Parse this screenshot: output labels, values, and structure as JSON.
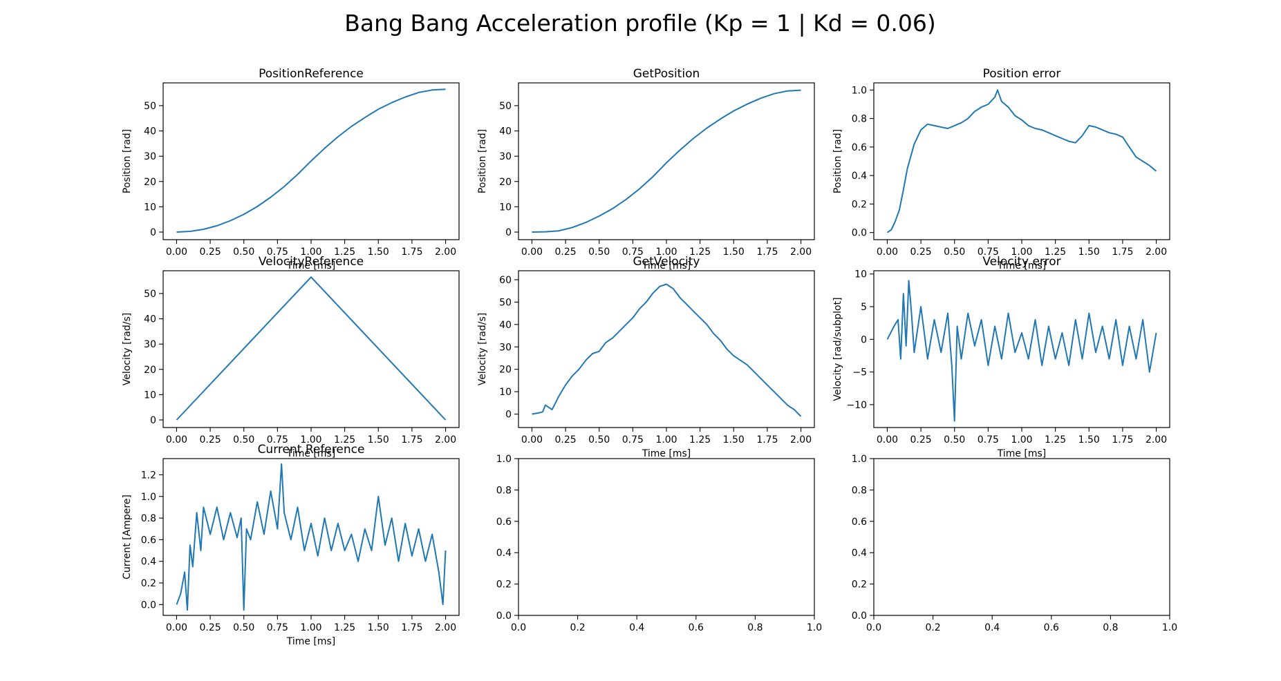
{
  "figure_title": "Bang Bang Acceleration profile (Kp = 1 | Kd = 0.06)",
  "series_color": "#1f77b4",
  "chart_data": [
    {
      "type": "line",
      "title": "PositionReference",
      "xlabel": "Time [ms]",
      "ylabel": "Position [rad]",
      "xlim": [
        -0.1,
        2.1
      ],
      "ylim": [
        -3,
        59
      ],
      "xticks": [
        "0.00",
        "0.25",
        "0.50",
        "0.75",
        "1.00",
        "1.25",
        "1.50",
        "1.75",
        "2.00"
      ],
      "yticks": [
        "0",
        "10",
        "20",
        "30",
        "40",
        "50"
      ],
      "x": [
        0,
        0.1,
        0.2,
        0.3,
        0.4,
        0.5,
        0.6,
        0.7,
        0.8,
        0.9,
        1.0,
        1.1,
        1.2,
        1.3,
        1.4,
        1.5,
        1.6,
        1.7,
        1.8,
        1.9,
        2.0
      ],
      "y": [
        0,
        0.28,
        1.1,
        2.5,
        4.5,
        7.0,
        10.1,
        13.8,
        18.0,
        22.8,
        28.1,
        33.1,
        37.7,
        41.8,
        45.3,
        48.6,
        51.2,
        53.4,
        55.2,
        56.2,
        56.5
      ]
    },
    {
      "type": "line",
      "title": "GetPosition",
      "xlabel": "Time [ms]",
      "ylabel": "Position [rad]",
      "xlim": [
        -0.1,
        2.1
      ],
      "ylim": [
        -3,
        59
      ],
      "xticks": [
        "0.00",
        "0.25",
        "0.50",
        "0.75",
        "1.00",
        "1.25",
        "1.50",
        "1.75",
        "2.00"
      ],
      "yticks": [
        "0",
        "10",
        "20",
        "30",
        "40",
        "50"
      ],
      "x": [
        0,
        0.1,
        0.2,
        0.3,
        0.4,
        0.5,
        0.6,
        0.7,
        0.8,
        0.9,
        1.0,
        1.1,
        1.2,
        1.3,
        1.4,
        1.5,
        1.6,
        1.7,
        1.8,
        1.9,
        2.0
      ],
      "y": [
        0,
        0.1,
        0.5,
        1.8,
        3.8,
        6.3,
        9.3,
        12.9,
        17.1,
        21.9,
        27.4,
        32.4,
        37.0,
        41.1,
        44.7,
        47.9,
        50.6,
        52.9,
        54.7,
        55.8,
        56.1
      ]
    },
    {
      "type": "line",
      "title": "Position error",
      "xlabel": "Time [ms]",
      "ylabel": "Position [rad]",
      "xlim": [
        -0.1,
        2.1
      ],
      "ylim": [
        -0.05,
        1.05
      ],
      "xticks": [
        "0.00",
        "0.25",
        "0.50",
        "0.75",
        "1.00",
        "1.25",
        "1.50",
        "1.75",
        "2.00"
      ],
      "yticks": [
        "0.0",
        "0.2",
        "0.4",
        "0.6",
        "0.8",
        "1.0"
      ],
      "x": [
        0,
        0.03,
        0.06,
        0.09,
        0.12,
        0.15,
        0.2,
        0.25,
        0.3,
        0.35,
        0.4,
        0.45,
        0.5,
        0.55,
        0.6,
        0.65,
        0.7,
        0.75,
        0.8,
        0.82,
        0.85,
        0.9,
        0.95,
        1.0,
        1.05,
        1.1,
        1.15,
        1.2,
        1.25,
        1.3,
        1.35,
        1.4,
        1.45,
        1.5,
        1.55,
        1.6,
        1.65,
        1.7,
        1.75,
        1.8,
        1.85,
        1.9,
        1.95,
        2.0
      ],
      "y": [
        0,
        0.02,
        0.08,
        0.16,
        0.3,
        0.45,
        0.62,
        0.72,
        0.76,
        0.75,
        0.74,
        0.73,
        0.75,
        0.77,
        0.8,
        0.85,
        0.88,
        0.9,
        0.95,
        1.0,
        0.92,
        0.88,
        0.82,
        0.79,
        0.75,
        0.73,
        0.72,
        0.7,
        0.68,
        0.66,
        0.64,
        0.63,
        0.68,
        0.75,
        0.74,
        0.72,
        0.7,
        0.69,
        0.67,
        0.6,
        0.53,
        0.5,
        0.47,
        0.43
      ]
    },
    {
      "type": "line",
      "title": "VelocityReference",
      "xlabel": "Time [ms]",
      "ylabel": "Velocity [rad/s]",
      "xlim": [
        -0.1,
        2.1
      ],
      "ylim": [
        -3,
        59
      ],
      "xticks": [
        "0.00",
        "0.25",
        "0.50",
        "0.75",
        "1.00",
        "1.25",
        "1.50",
        "1.75",
        "2.00"
      ],
      "yticks": [
        "0",
        "10",
        "20",
        "30",
        "40",
        "50"
      ],
      "x": [
        0,
        1.0,
        2.0
      ],
      "y": [
        0,
        56.5,
        0
      ]
    },
    {
      "type": "line",
      "title": "GetVelocity",
      "xlabel": "Time [ms]",
      "ylabel": "Velocity [rad/s]",
      "xlim": [
        -0.1,
        2.1
      ],
      "ylim": [
        -6,
        64
      ],
      "xticks": [
        "0.00",
        "0.25",
        "0.50",
        "0.75",
        "1.00",
        "1.25",
        "1.50",
        "1.75",
        "2.00"
      ],
      "yticks": [
        "0",
        "10",
        "20",
        "30",
        "40",
        "50",
        "60"
      ],
      "x": [
        0,
        0.05,
        0.08,
        0.1,
        0.15,
        0.2,
        0.25,
        0.3,
        0.35,
        0.4,
        0.45,
        0.5,
        0.55,
        0.6,
        0.65,
        0.7,
        0.75,
        0.8,
        0.85,
        0.9,
        0.95,
        1.0,
        1.05,
        1.1,
        1.15,
        1.2,
        1.25,
        1.3,
        1.35,
        1.4,
        1.45,
        1.5,
        1.55,
        1.6,
        1.65,
        1.7,
        1.75,
        1.8,
        1.85,
        1.9,
        1.95,
        2.0
      ],
      "y": [
        0,
        0.5,
        1,
        4,
        2,
        8,
        13,
        17,
        20,
        24,
        27,
        28,
        32,
        34,
        37,
        40,
        43,
        47,
        50,
        54,
        57,
        58,
        56,
        52,
        49,
        46,
        43,
        40,
        36,
        33,
        29,
        26,
        24,
        22,
        19,
        16,
        13,
        10,
        7,
        4,
        2,
        -1
      ]
    },
    {
      "type": "line",
      "title": "Velocity error",
      "xlabel": "Time [ms]",
      "ylabel": "Velocity [rad/subplot]",
      "xlim": [
        -0.1,
        2.1
      ],
      "ylim": [
        -13.5,
        10.5
      ],
      "xticks": [
        "0.00",
        "0.25",
        "0.50",
        "0.75",
        "1.00",
        "1.25",
        "1.50",
        "1.75",
        "2.00"
      ],
      "yticks": [
        "−10",
        "−5",
        "0",
        "5",
        "10"
      ],
      "x": [
        0,
        0.05,
        0.08,
        0.1,
        0.12,
        0.14,
        0.16,
        0.18,
        0.2,
        0.25,
        0.3,
        0.35,
        0.4,
        0.45,
        0.48,
        0.5,
        0.52,
        0.55,
        0.6,
        0.65,
        0.7,
        0.75,
        0.8,
        0.85,
        0.9,
        0.95,
        1.0,
        1.05,
        1.1,
        1.15,
        1.2,
        1.25,
        1.3,
        1.35,
        1.4,
        1.45,
        1.5,
        1.55,
        1.6,
        1.65,
        1.7,
        1.75,
        1.8,
        1.85,
        1.9,
        1.95,
        2.0
      ],
      "y": [
        0,
        2,
        3,
        -3,
        7,
        -1,
        9,
        4,
        -2,
        5,
        -3,
        3,
        -2,
        4,
        -4,
        -12.5,
        2,
        -3,
        4,
        -1,
        3,
        -4,
        2,
        -3,
        4,
        -2,
        1,
        -3,
        3,
        -4,
        2,
        -3,
        1,
        -4,
        3,
        -3,
        4,
        -2,
        2,
        -3,
        3,
        -4,
        2,
        -3,
        3,
        -5,
        1
      ]
    },
    {
      "type": "line",
      "title": "Current Reference",
      "xlabel": "Time [ms]",
      "ylabel": "Current [Ampere]",
      "xlim": [
        -0.1,
        2.1
      ],
      "ylim": [
        -0.1,
        1.35
      ],
      "xticks": [
        "0.00",
        "0.25",
        "0.50",
        "0.75",
        "1.00",
        "1.25",
        "1.50",
        "1.75",
        "2.00"
      ],
      "yticks": [
        "0.0",
        "0.2",
        "0.4",
        "0.6",
        "0.8",
        "1.0",
        "1.2"
      ],
      "x": [
        0,
        0.03,
        0.06,
        0.08,
        0.1,
        0.12,
        0.15,
        0.18,
        0.2,
        0.25,
        0.3,
        0.35,
        0.4,
        0.45,
        0.48,
        0.5,
        0.52,
        0.55,
        0.6,
        0.65,
        0.7,
        0.75,
        0.78,
        0.8,
        0.85,
        0.9,
        0.95,
        1.0,
        1.05,
        1.1,
        1.15,
        1.2,
        1.25,
        1.3,
        1.35,
        1.4,
        1.45,
        1.5,
        1.55,
        1.6,
        1.65,
        1.7,
        1.75,
        1.8,
        1.85,
        1.9,
        1.95,
        1.98,
        2.0
      ],
      "y": [
        0,
        0.1,
        0.3,
        -0.05,
        0.55,
        0.35,
        0.85,
        0.5,
        0.9,
        0.65,
        0.9,
        0.6,
        0.85,
        0.62,
        0.8,
        -0.05,
        0.7,
        0.6,
        0.95,
        0.65,
        1.05,
        0.7,
        1.3,
        0.85,
        0.6,
        0.9,
        0.5,
        0.75,
        0.45,
        0.8,
        0.5,
        0.75,
        0.5,
        0.65,
        0.4,
        0.7,
        0.5,
        1.0,
        0.55,
        0.8,
        0.4,
        0.75,
        0.45,
        0.7,
        0.4,
        0.65,
        0.3,
        0.0,
        0.5
      ]
    },
    {
      "type": "line",
      "title": "",
      "xlabel": "",
      "ylabel": "",
      "xlim": [
        0,
        1
      ],
      "ylim": [
        0,
        1
      ],
      "xticks": [
        "0.0",
        "0.2",
        "0.4",
        "0.6",
        "0.8",
        "1.0"
      ],
      "yticks": [
        "0.0",
        "0.2",
        "0.4",
        "0.6",
        "0.8",
        "1.0"
      ],
      "x": [],
      "y": []
    },
    {
      "type": "line",
      "title": "",
      "xlabel": "",
      "ylabel": "",
      "xlim": [
        0,
        1
      ],
      "ylim": [
        0,
        1
      ],
      "xticks": [
        "0.0",
        "0.2",
        "0.4",
        "0.6",
        "0.8",
        "1.0"
      ],
      "yticks": [
        "0.0",
        "0.2",
        "0.4",
        "0.6",
        "0.8",
        "1.0"
      ],
      "x": [],
      "y": []
    }
  ]
}
